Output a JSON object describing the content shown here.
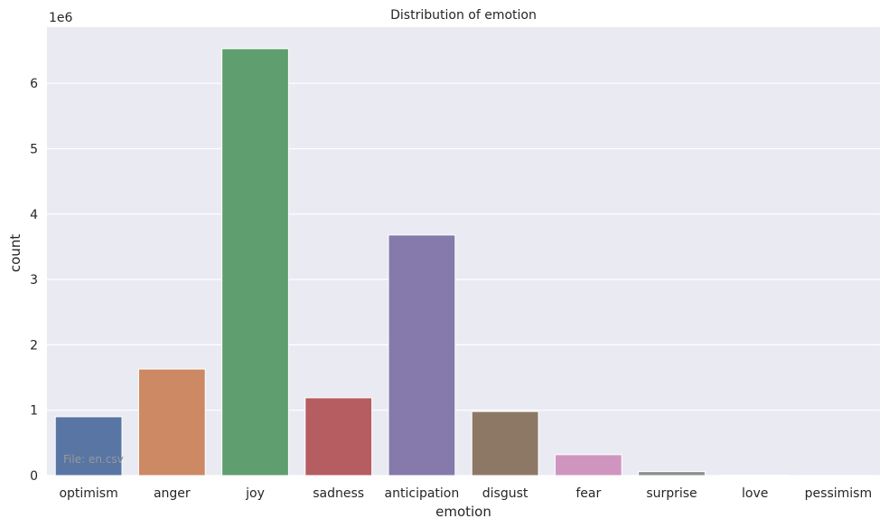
{
  "chart_data": {
    "type": "bar",
    "title": "Distribution of emotion",
    "xlabel": "emotion",
    "ylabel": "count",
    "y_offset_label": "1e6",
    "categories": [
      "optimism",
      "anger",
      "joy",
      "sadness",
      "anticipation",
      "disgust",
      "fear",
      "surprise",
      "love",
      "pessimism"
    ],
    "values": [
      900000,
      1630000,
      6530000,
      1190000,
      3680000,
      980000,
      320000,
      60000,
      5000,
      3000
    ],
    "colors": [
      "#5875a4",
      "#cc8963",
      "#5f9e6e",
      "#b55d60",
      "#857aab",
      "#8d7866",
      "#d095bf",
      "#8c8c8c",
      "#c1b37f",
      "#64b5cd"
    ],
    "ylim": [
      0,
      6860000
    ],
    "yticks": [
      0,
      1000000,
      2000000,
      3000000,
      4000000,
      5000000,
      6000000
    ],
    "ytick_labels": [
      "0",
      "1",
      "2",
      "3",
      "4",
      "5",
      "6"
    ],
    "grid": true,
    "annotation": "File: en.csv"
  }
}
